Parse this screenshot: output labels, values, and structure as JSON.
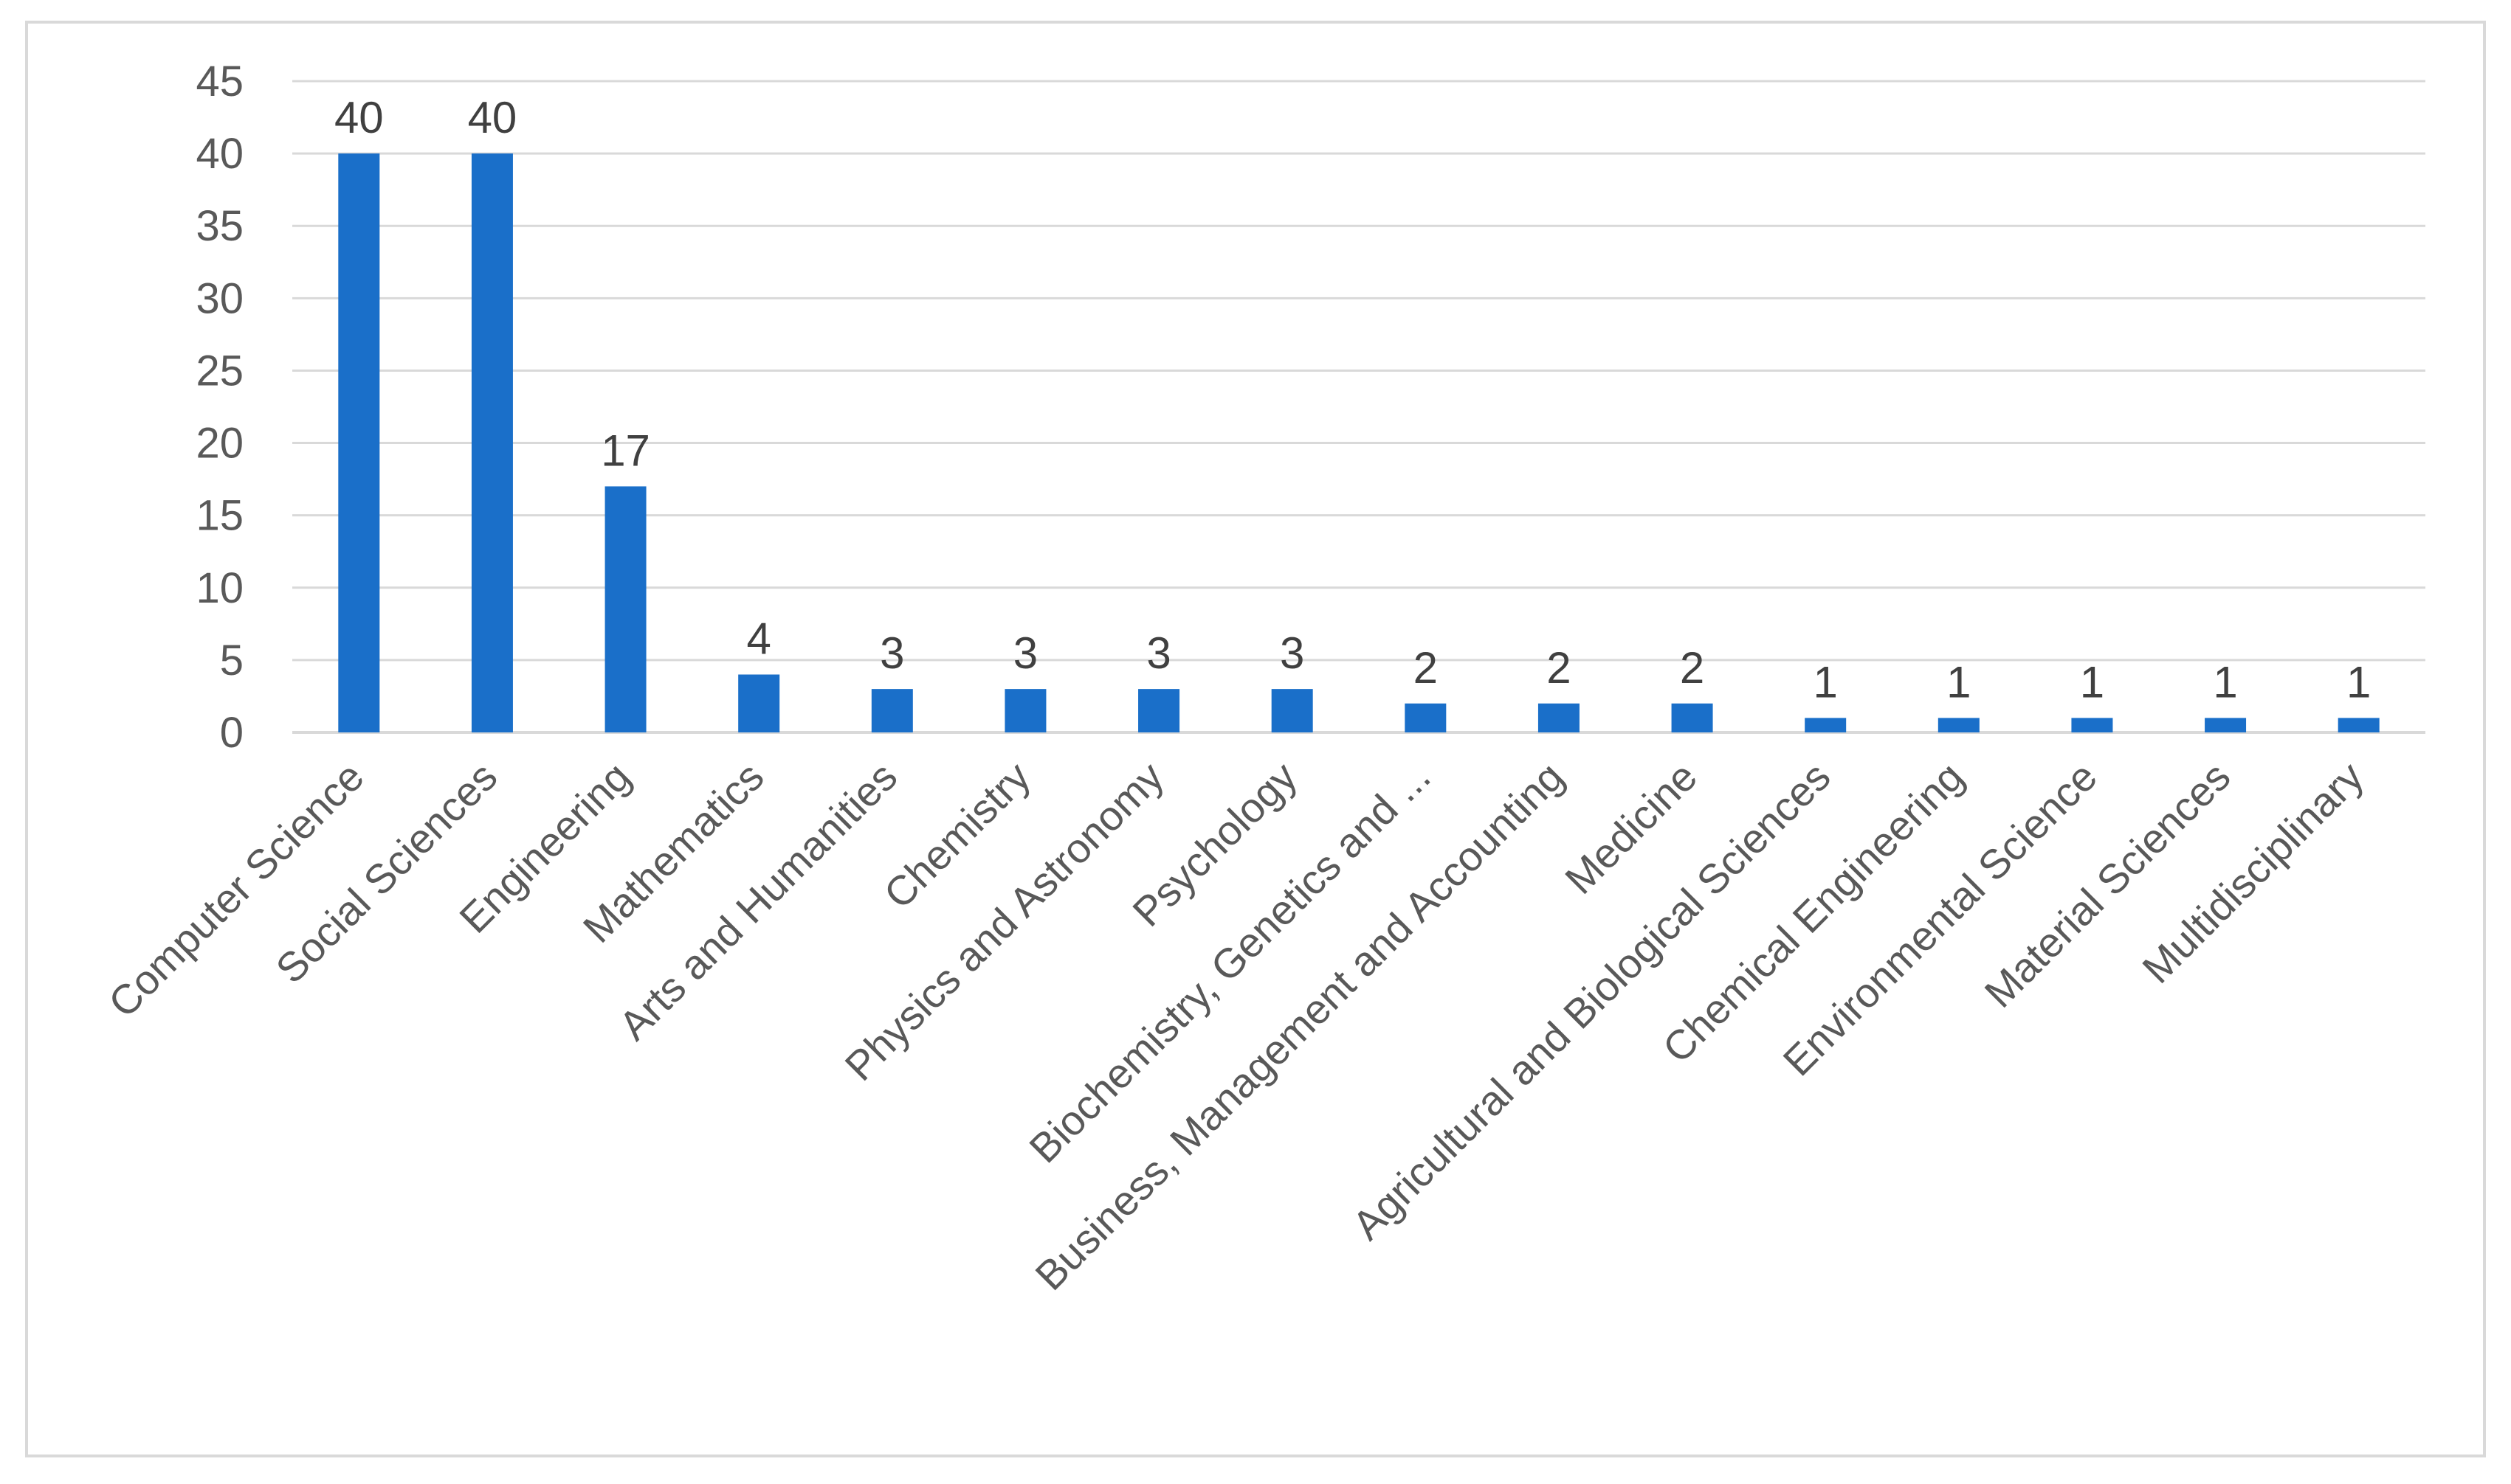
{
  "chart_data": {
    "type": "bar",
    "title": "",
    "xlabel": "",
    "ylabel": "",
    "categories": [
      "Computer Science",
      "Social Sciences",
      "Engineering",
      "Mathematics",
      "Arts and Humanities",
      "Chemistry",
      "Physics and Astronomy",
      "Psychology",
      "Biochemistry, Genetics and ...",
      "Business, Management and Accounting",
      "Medicine",
      "Agricultural and Biological Sciences",
      "Chemical Engineering",
      "Environmental Science",
      "Material Sciences",
      "Multidisciplinary"
    ],
    "values": [
      40,
      40,
      17,
      4,
      3,
      3,
      3,
      3,
      2,
      2,
      2,
      1,
      1,
      1,
      1,
      1
    ],
    "data_labels": [
      "40",
      "40",
      "17",
      "4",
      "3",
      "3",
      "3",
      "3",
      "2",
      "2",
      "2",
      "1",
      "1",
      "1",
      "1",
      "1"
    ],
    "ylim": [
      0,
      45
    ],
    "yticks": [
      "0",
      "5",
      "10",
      "15",
      "20",
      "25",
      "30",
      "35",
      "40",
      "45"
    ],
    "grid": true,
    "legend": "none",
    "bar_color": "#1a6fc9",
    "grid_color": "#d9d9d9"
  }
}
